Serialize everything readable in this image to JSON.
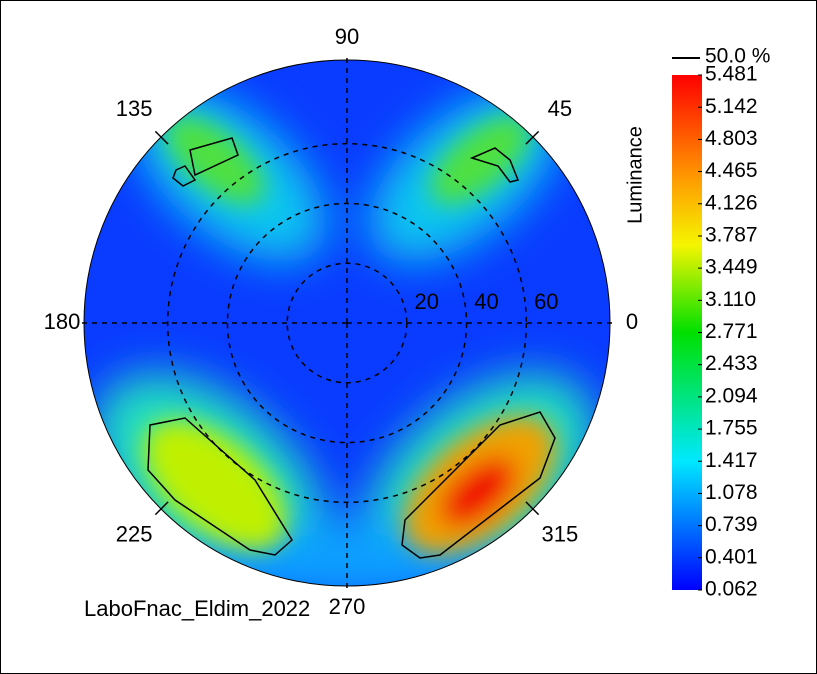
{
  "chart_data": {
    "type": "polar-heatmap",
    "angle_ticks": [
      0,
      45,
      90,
      135,
      180,
      225,
      270,
      315
    ],
    "rlim": [
      0,
      88
    ],
    "rticks": [
      20,
      40,
      60
    ],
    "contour_level": {
      "value": 50,
      "label": "50.0 %"
    },
    "colorbar_label": "Luminance",
    "colorbar_lim": [
      0.062,
      5.481
    ],
    "colorbar_ticks": [
      5.481,
      5.142,
      4.803,
      4.465,
      4.126,
      3.787,
      3.449,
      3.11,
      2.771,
      2.433,
      2.094,
      1.755,
      1.417,
      1.078,
      0.739,
      0.401,
      0.062
    ],
    "colorbar_tick_labels": [
      "5.481",
      "5.142",
      "4.803",
      "4.465",
      "4.126",
      "3.787",
      "3.449",
      "3.110",
      "2.771",
      "2.433",
      "2.094",
      "1.755",
      "1.417",
      "1.078",
      "0.739",
      "0.401",
      "0.062"
    ],
    "footer": "LaboFnac_Eldim_2022"
  }
}
